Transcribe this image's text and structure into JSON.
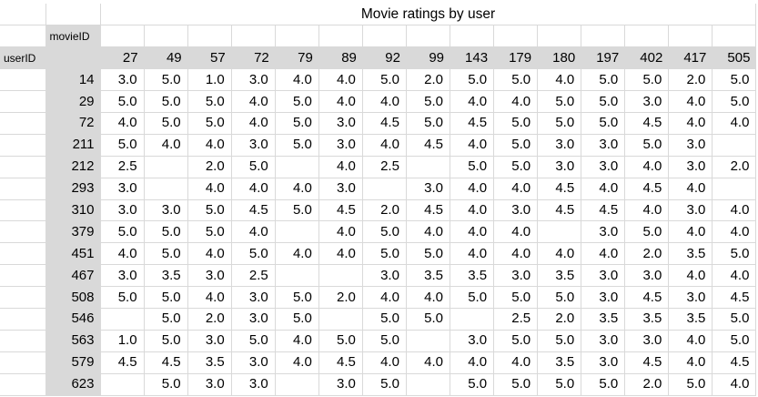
{
  "title": "Movie ratings by user",
  "labels": {
    "movie": "movieID",
    "user": "userID"
  },
  "movie_ids": [
    "27",
    "49",
    "57",
    "72",
    "79",
    "89",
    "92",
    "99",
    "143",
    "179",
    "180",
    "197",
    "402",
    "417",
    "505"
  ],
  "rows": [
    {
      "user": "14",
      "r": [
        "3.0",
        "5.0",
        "1.0",
        "3.0",
        "4.0",
        "4.0",
        "5.0",
        "2.0",
        "5.0",
        "5.0",
        "4.0",
        "5.0",
        "5.0",
        "2.0",
        "5.0"
      ]
    },
    {
      "user": "29",
      "r": [
        "5.0",
        "5.0",
        "5.0",
        "4.0",
        "5.0",
        "4.0",
        "4.0",
        "5.0",
        "4.0",
        "4.0",
        "5.0",
        "5.0",
        "3.0",
        "4.0",
        "5.0"
      ]
    },
    {
      "user": "72",
      "r": [
        "4.0",
        "5.0",
        "5.0",
        "4.0",
        "5.0",
        "3.0",
        "4.5",
        "5.0",
        "4.5",
        "5.0",
        "5.0",
        "5.0",
        "4.5",
        "4.0",
        "4.0"
      ]
    },
    {
      "user": "211",
      "r": [
        "5.0",
        "4.0",
        "4.0",
        "3.0",
        "5.0",
        "3.0",
        "4.0",
        "4.5",
        "4.0",
        "5.0",
        "3.0",
        "3.0",
        "5.0",
        "3.0",
        ""
      ]
    },
    {
      "user": "212",
      "r": [
        "2.5",
        "",
        "2.0",
        "5.0",
        "",
        "4.0",
        "2.5",
        "",
        "5.0",
        "5.0",
        "3.0",
        "3.0",
        "4.0",
        "3.0",
        "2.0"
      ]
    },
    {
      "user": "293",
      "r": [
        "3.0",
        "",
        "4.0",
        "4.0",
        "4.0",
        "3.0",
        "",
        "3.0",
        "4.0",
        "4.0",
        "4.5",
        "4.0",
        "4.5",
        "4.0",
        ""
      ]
    },
    {
      "user": "310",
      "r": [
        "3.0",
        "3.0",
        "5.0",
        "4.5",
        "5.0",
        "4.5",
        "2.0",
        "4.5",
        "4.0",
        "3.0",
        "4.5",
        "4.5",
        "4.0",
        "3.0",
        "4.0"
      ]
    },
    {
      "user": "379",
      "r": [
        "5.0",
        "5.0",
        "5.0",
        "4.0",
        "",
        "4.0",
        "5.0",
        "4.0",
        "4.0",
        "4.0",
        "",
        "3.0",
        "5.0",
        "4.0",
        "4.0"
      ]
    },
    {
      "user": "451",
      "r": [
        "4.0",
        "5.0",
        "4.0",
        "5.0",
        "4.0",
        "4.0",
        "5.0",
        "5.0",
        "4.0",
        "4.0",
        "4.0",
        "4.0",
        "2.0",
        "3.5",
        "5.0"
      ]
    },
    {
      "user": "467",
      "r": [
        "3.0",
        "3.5",
        "3.0",
        "2.5",
        "",
        "",
        "3.0",
        "3.5",
        "3.5",
        "3.0",
        "3.5",
        "3.0",
        "3.0",
        "4.0",
        "4.0"
      ]
    },
    {
      "user": "508",
      "r": [
        "5.0",
        "5.0",
        "4.0",
        "3.0",
        "5.0",
        "2.0",
        "4.0",
        "4.0",
        "5.0",
        "5.0",
        "5.0",
        "3.0",
        "4.5",
        "3.0",
        "4.5"
      ]
    },
    {
      "user": "546",
      "r": [
        "",
        "5.0",
        "2.0",
        "3.0",
        "5.0",
        "",
        "5.0",
        "5.0",
        "",
        "2.5",
        "2.0",
        "3.5",
        "3.5",
        "3.5",
        "5.0"
      ]
    },
    {
      "user": "563",
      "r": [
        "1.0",
        "5.0",
        "3.0",
        "5.0",
        "4.0",
        "5.0",
        "5.0",
        "",
        "3.0",
        "5.0",
        "5.0",
        "3.0",
        "3.0",
        "4.0",
        "5.0"
      ]
    },
    {
      "user": "579",
      "r": [
        "4.5",
        "4.5",
        "3.5",
        "3.0",
        "4.0",
        "4.5",
        "4.0",
        "4.0",
        "4.0",
        "4.0",
        "3.5",
        "3.0",
        "4.5",
        "4.0",
        "4.5"
      ]
    },
    {
      "user": "623",
      "r": [
        "",
        "5.0",
        "3.0",
        "3.0",
        "",
        "3.0",
        "5.0",
        "",
        "5.0",
        "5.0",
        "5.0",
        "5.0",
        "2.0",
        "5.0",
        "4.0"
      ]
    }
  ],
  "colors": {
    "header_fill": "#d9d9d9",
    "gridline": "#d9d9d9"
  }
}
